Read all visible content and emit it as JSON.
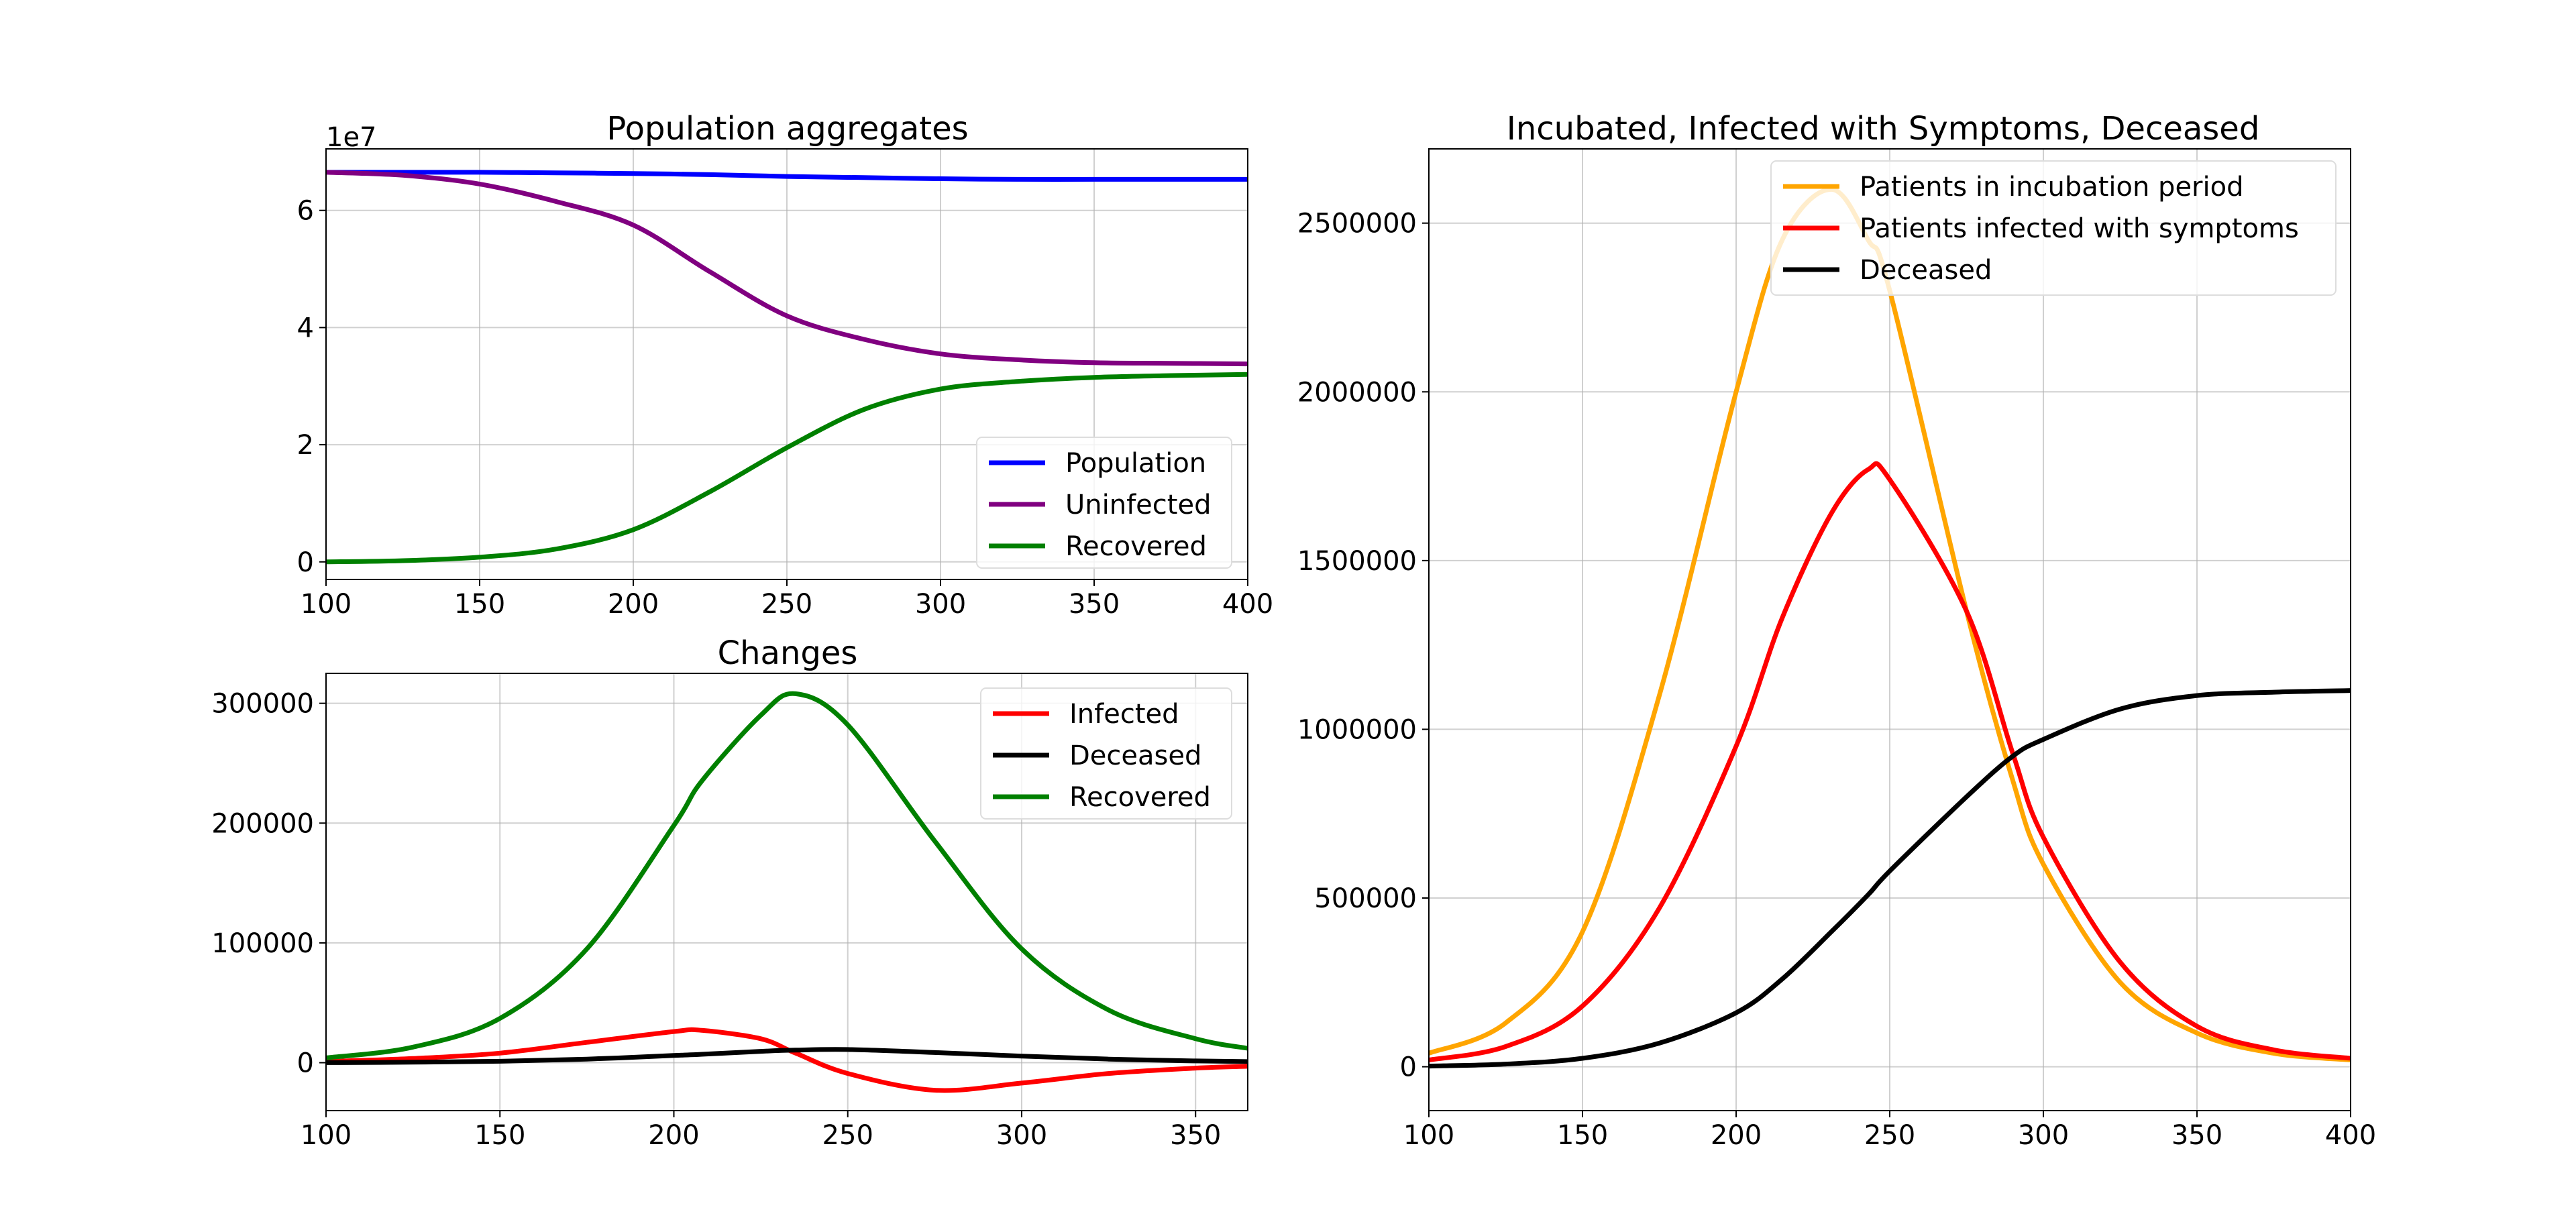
{
  "chart_data": [
    {
      "id": "aggregates",
      "type": "line",
      "title": "Population aggregates",
      "xlabel": "",
      "ylabel": "",
      "xlim": [
        100,
        400
      ],
      "ylim": [
        -0.3,
        7.05
      ],
      "y_offset_label": "1e7",
      "grid": true,
      "legend_position": "lower-right",
      "xticks": [
        100,
        150,
        200,
        250,
        300,
        350,
        400
      ],
      "yticks": [
        0,
        2,
        4,
        6
      ],
      "x": [
        100,
        125,
        150,
        175,
        200,
        225,
        250,
        275,
        300,
        325,
        350,
        375,
        400
      ],
      "series": [
        {
          "name": "Population",
          "color": "#0000ff",
          "values": [
            6.65,
            6.65,
            6.65,
            6.64,
            6.63,
            6.61,
            6.58,
            6.56,
            6.54,
            6.53,
            6.53,
            6.53,
            6.53
          ]
        },
        {
          "name": "Uninfected",
          "color": "#800080",
          "values": [
            6.65,
            6.6,
            6.45,
            6.15,
            5.75,
            4.95,
            4.2,
            3.8,
            3.55,
            3.45,
            3.4,
            3.39,
            3.38
          ]
        },
        {
          "name": "Recovered",
          "color": "#008000",
          "values": [
            0.0,
            0.02,
            0.08,
            0.22,
            0.55,
            1.2,
            1.95,
            2.6,
            2.95,
            3.08,
            3.15,
            3.18,
            3.2
          ]
        }
      ]
    },
    {
      "id": "changes",
      "type": "line",
      "title": "Changes",
      "xlabel": "",
      "ylabel": "",
      "xlim": [
        100,
        365
      ],
      "ylim": [
        -40000,
        325000
      ],
      "grid": true,
      "legend_position": "upper-right",
      "xticks": [
        100,
        150,
        200,
        250,
        300,
        350
      ],
      "yticks": [
        0,
        100000,
        200000,
        300000
      ],
      "x": [
        100,
        125,
        150,
        175,
        200,
        208,
        225,
        235,
        250,
        275,
        300,
        325,
        350,
        365
      ],
      "series": [
        {
          "name": "Infected",
          "color": "#ff0000",
          "values": [
            1000,
            3500,
            8000,
            17000,
            26000,
            27000,
            20000,
            8000,
            -9000,
            -23000,
            -17000,
            -9000,
            -4500,
            -3000
          ]
        },
        {
          "name": "Deceased",
          "color": "#000000",
          "values": [
            100,
            400,
            1200,
            3000,
            6000,
            7000,
            9500,
            10500,
            11000,
            8500,
            5500,
            3000,
            1500,
            900
          ]
        },
        {
          "name": "Recovered",
          "color": "#008000",
          "values": [
            4000,
            13000,
            37000,
            95000,
            198000,
            235000,
            290000,
            308000,
            282000,
            185000,
            95000,
            44000,
            20000,
            12000
          ]
        }
      ]
    },
    {
      "id": "incubated",
      "type": "line",
      "title": "Incubated, Infected with Symptoms, Deceased",
      "xlabel": "",
      "ylabel": "",
      "xlim": [
        100,
        400
      ],
      "ylim": [
        -130000,
        2720000
      ],
      "grid": true,
      "legend_position": "upper-right",
      "xticks": [
        100,
        150,
        200,
        250,
        300,
        350,
        400
      ],
      "yticks": [
        0,
        500000,
        1000000,
        1500000,
        2000000,
        2500000
      ],
      "x": [
        100,
        125,
        150,
        175,
        200,
        215,
        231,
        243,
        250,
        275,
        290,
        300,
        325,
        350,
        375,
        400
      ],
      "series": [
        {
          "name": "Patients in incubation period",
          "color": "#ffa500",
          "values": [
            40000,
            130000,
            400000,
            1100000,
            2000000,
            2450000,
            2600000,
            2450000,
            2300000,
            1350000,
            850000,
            600000,
            250000,
            100000,
            40000,
            20000
          ]
        },
        {
          "name": "Patients infected with symptoms",
          "color": "#ff0000",
          "values": [
            20000,
            60000,
            180000,
            470000,
            950000,
            1330000,
            1640000,
            1770000,
            1740000,
            1350000,
            930000,
            680000,
            310000,
            120000,
            50000,
            25000
          ]
        },
        {
          "name": "Deceased",
          "color": "#000000",
          "values": [
            2000,
            8000,
            25000,
            70000,
            160000,
            260000,
            400000,
            510000,
            580000,
            800000,
            920000,
            970000,
            1060000,
            1100000,
            1110000,
            1115000
          ]
        }
      ]
    }
  ]
}
